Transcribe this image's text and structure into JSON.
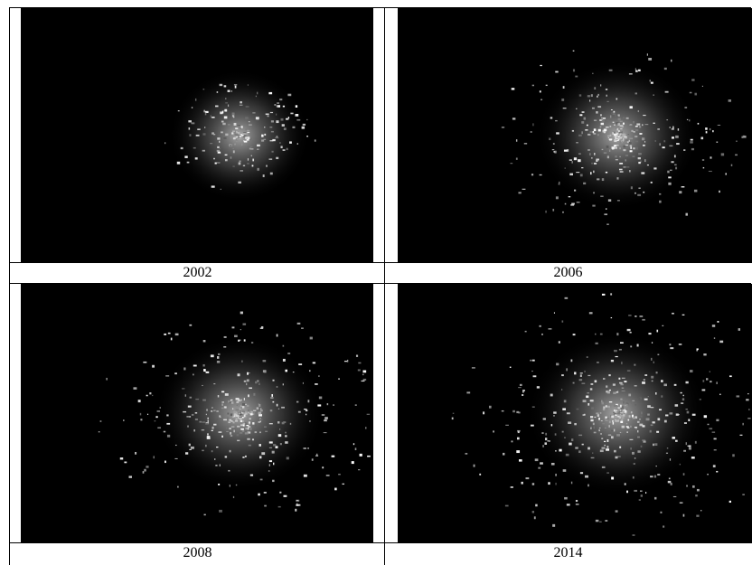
{
  "panels": [
    {
      "label": "2002"
    },
    {
      "label": "2006"
    },
    {
      "label": "2008"
    },
    {
      "label": "2014"
    }
  ]
}
